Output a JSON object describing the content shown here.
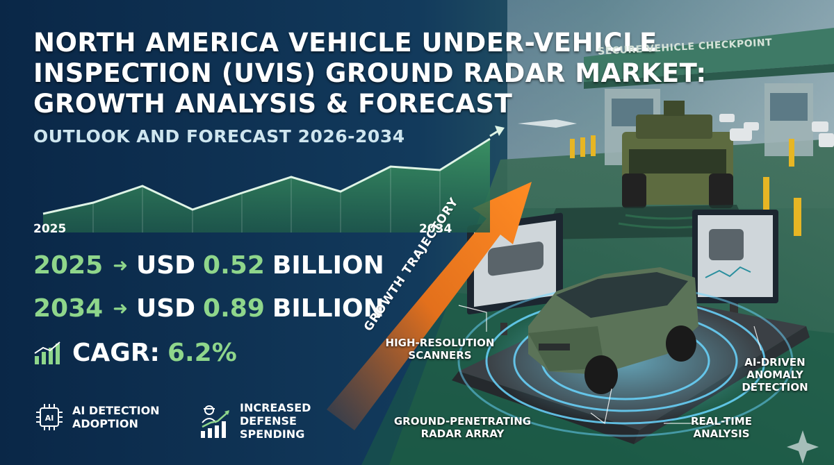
{
  "header": {
    "title": "North America Vehicle Under-Vehicle Inspection (UVIS) Ground Radar Market: Growth Analysis & Forecast",
    "subtitle": "OUTLOOK AND FORECAST 2026-2034"
  },
  "trend": {
    "start_label": "2025",
    "end_label": "2034"
  },
  "stats": {
    "start": {
      "year": "2025",
      "prefix": "USD",
      "value": "0.52",
      "unit": "BILLION"
    },
    "end": {
      "year": "2034",
      "prefix": "USD",
      "value": "0.89",
      "unit": "BILLION"
    },
    "cagr": {
      "label": "CAGR:",
      "value": "6.2%"
    }
  },
  "drivers": [
    {
      "icon": "ai-chip-icon",
      "line1": "AI DETECTION",
      "line2": "ADOPTION"
    },
    {
      "icon": "defense-growth-icon",
      "line1": "INCREASED",
      "line2": "DEFENSE",
      "line3": "SPENDING"
    }
  ],
  "illustration": {
    "sign_text": "SECURE VEHICLE CHECKPOINT",
    "trajectory_label": "GROWTH TRAJECTORY",
    "callouts": {
      "scanners": {
        "line1": "HIGH-RESOLUTION",
        "line2": "SCANNERS"
      },
      "ai": {
        "line1": "AI-DRIVEN",
        "line2": "ANOMALY",
        "line3": "DETECTION"
      },
      "radar": {
        "line1": "GROUND-PENETRATING",
        "line2": "RADAR ARRAY"
      },
      "realtime": {
        "line1": "REAL-TIME",
        "line2": "ANALYSIS"
      }
    }
  },
  "colors": {
    "background": "#0a2747",
    "accent_green": "#8fd68b",
    "arrow_orange": "#f27a1f",
    "radar_blue": "#5fd3ff"
  }
}
